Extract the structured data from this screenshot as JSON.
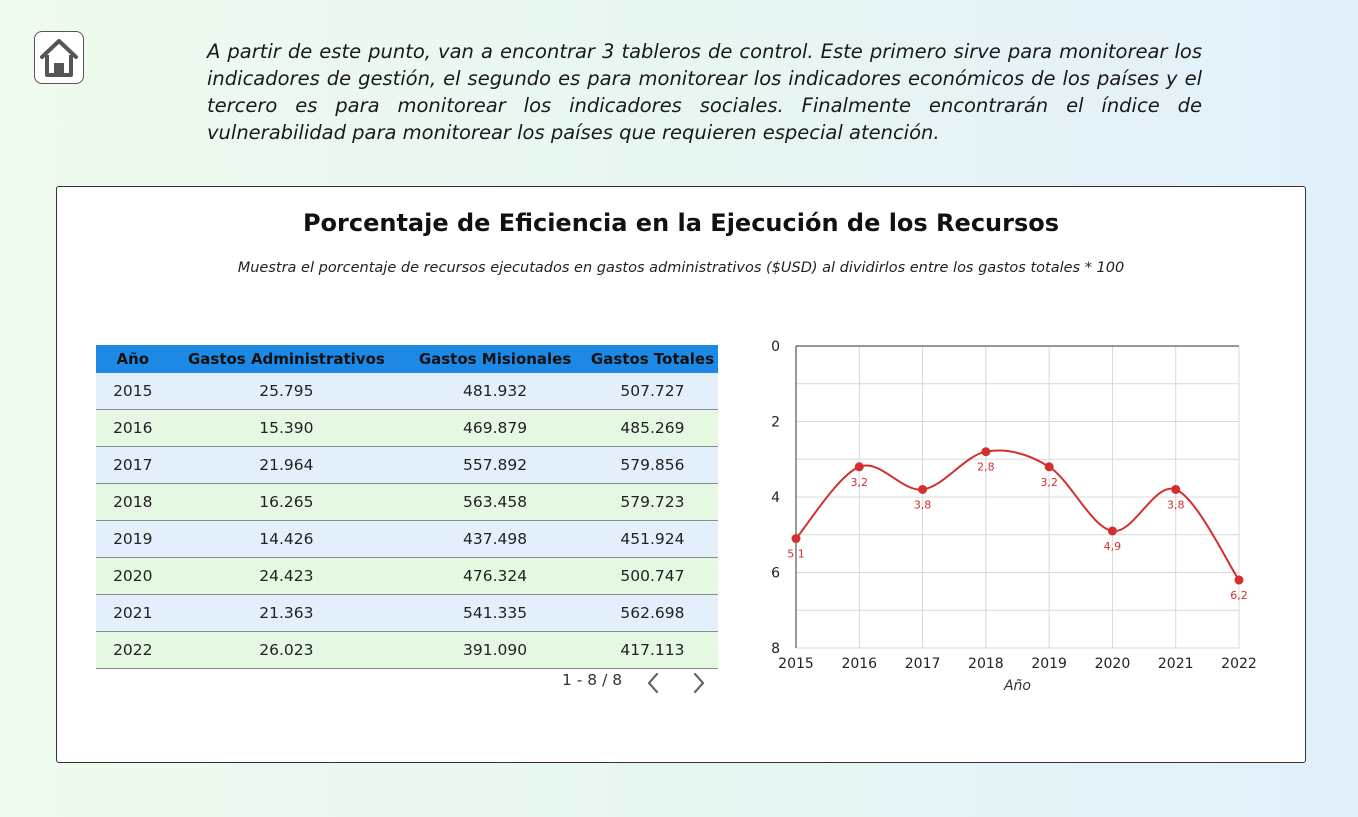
{
  "header": {
    "home_button": "home-icon",
    "intro_text": "A partir de este punto, van a encontrar 3 tableros de control. Este primero sirve para monitorear los indicadores de gestión, el segundo es para monitorear los indicadores económicos de los países y el tercero es para monitorear los indicadores sociales. Finalmente encontrarán el índice de vulnerabilidad para monitorear los países que requieren especial atención."
  },
  "panel": {
    "title": "Porcentaje de Eficiencia en la Ejecución de los Recursos",
    "subtitle": "Muestra el porcentaje de recursos ejecutados en gastos administrativos ($USD) al dividirlos entre los gastos totales * 100"
  },
  "table": {
    "columns": [
      "Año",
      "Gastos Administrativos",
      "Gastos Misionales",
      "Gastos Totales"
    ],
    "rows": [
      [
        "2015",
        "25.795",
        "481.932",
        "507.727"
      ],
      [
        "2016",
        "15.390",
        "469.879",
        "485.269"
      ],
      [
        "2017",
        "21.964",
        "557.892",
        "579.856"
      ],
      [
        "2018",
        "16.265",
        "563.458",
        "579.723"
      ],
      [
        "2019",
        "14.426",
        "437.498",
        "451.924"
      ],
      [
        "2020",
        "24.423",
        "476.324",
        "500.747"
      ],
      [
        "2021",
        "21.363",
        "541.335",
        "562.698"
      ],
      [
        "2022",
        "26.023",
        "391.090",
        "417.113"
      ]
    ],
    "pagination": {
      "label": "1 - 8 / 8",
      "prev_icon": "chevron-left-icon",
      "next_icon": "chevron-right-icon"
    }
  },
  "colors": {
    "header_blue": "#1e88e5",
    "row_blue": "#e3f0fc",
    "row_green": "#e4f8e2",
    "line_red": "#d32f2f"
  },
  "chart_data": {
    "type": "line",
    "x": [
      "2015",
      "2016",
      "2017",
      "2018",
      "2019",
      "2020",
      "2021",
      "2022"
    ],
    "series": [
      {
        "values": [
          5.1,
          3.2,
          3.8,
          2.8,
          3.2,
          4.9,
          3.8,
          6.2
        ],
        "labels": [
          "5,1",
          "3,2",
          "3,8",
          "2,8",
          "3,2",
          "4,9",
          "3,8",
          "6,2"
        ],
        "color": "#d32f2f"
      }
    ],
    "xlabel": "Año",
    "ylabel": "",
    "ylim": [
      0,
      8
    ],
    "y_reversed": true,
    "y_ticks": [
      0,
      2,
      4,
      6,
      8
    ],
    "smooth": true,
    "grid": true
  }
}
